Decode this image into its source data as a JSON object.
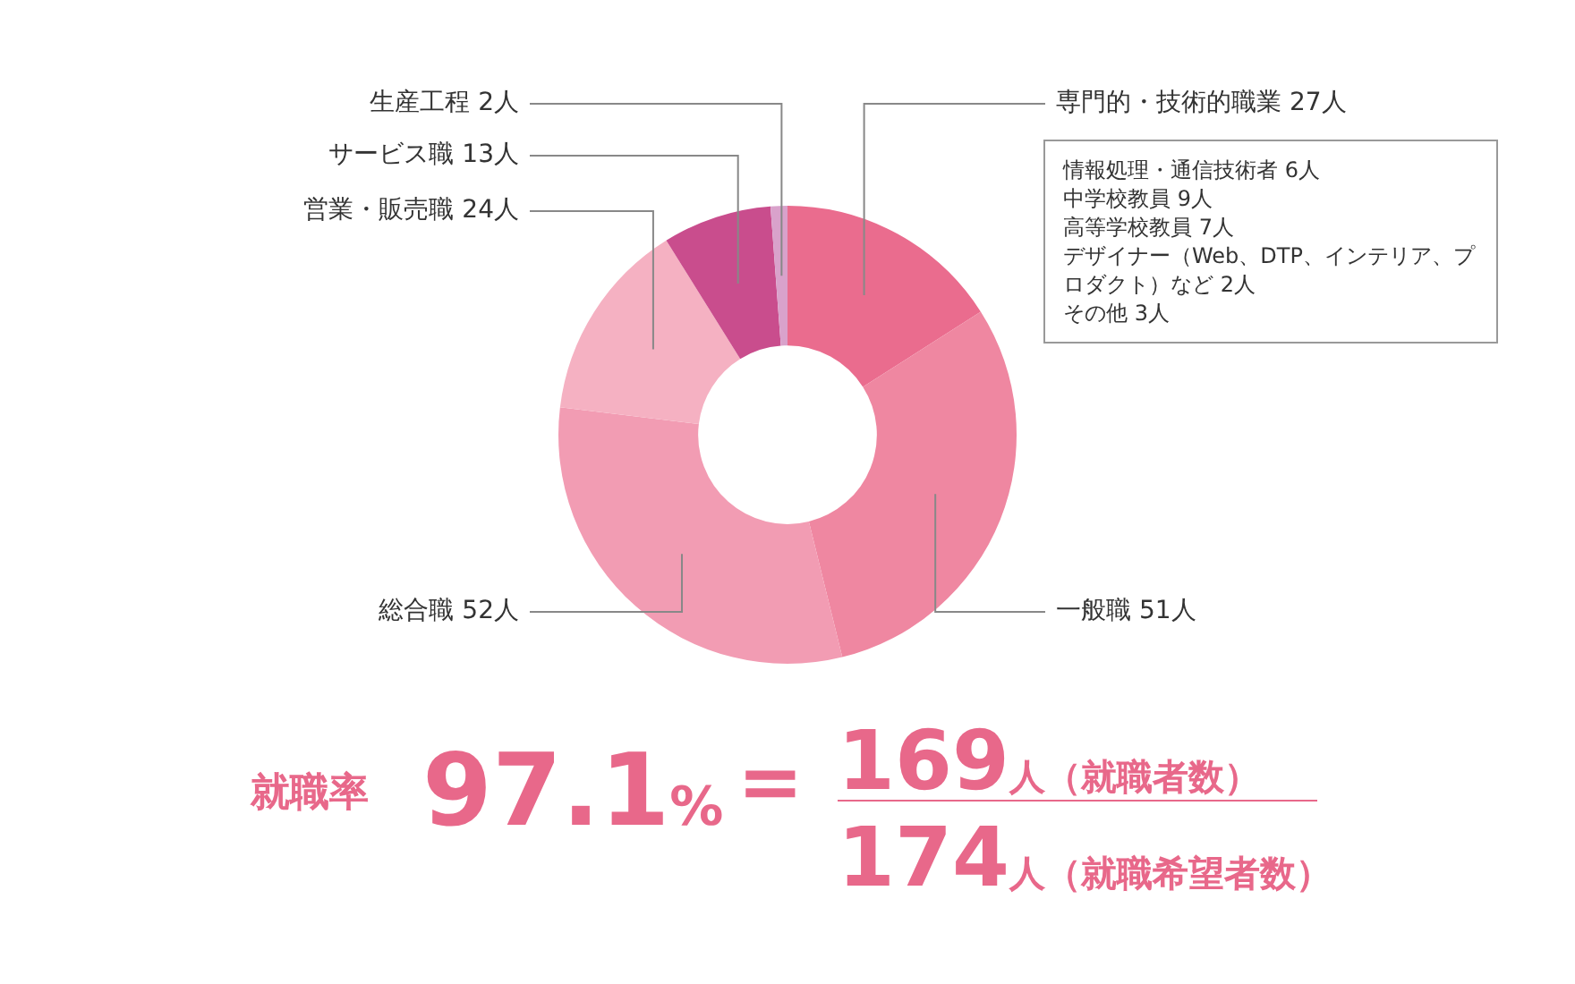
{
  "chart_data": {
    "type": "donut",
    "categories": [
      "専門的・技術的職業",
      "一般職",
      "総合職",
      "営業・販売職",
      "サービス職",
      "生産工程"
    ],
    "values": [
      27,
      51,
      52,
      24,
      13,
      2
    ],
    "value_labels": [
      "27人",
      "51人",
      "52人",
      "24人",
      "13人",
      "2人"
    ],
    "colors": [
      "#ea6c8e",
      "#ef87a1",
      "#f29cb3",
      "#f5b1c2",
      "#c94d8d",
      "#d9a2cb"
    ],
    "legend": false,
    "annotations": [
      "情報処理・通信技術者 6人",
      "中学校教員 9人",
      "高等学校教員 7人",
      "デザイナー（Web、DTP、インテリア、プロダクト）など 2人",
      "その他 3人",
      "就職率",
      "97.1%",
      "=",
      "169人（就職者数）",
      "174人（就職希望者数）"
    ]
  }
}
